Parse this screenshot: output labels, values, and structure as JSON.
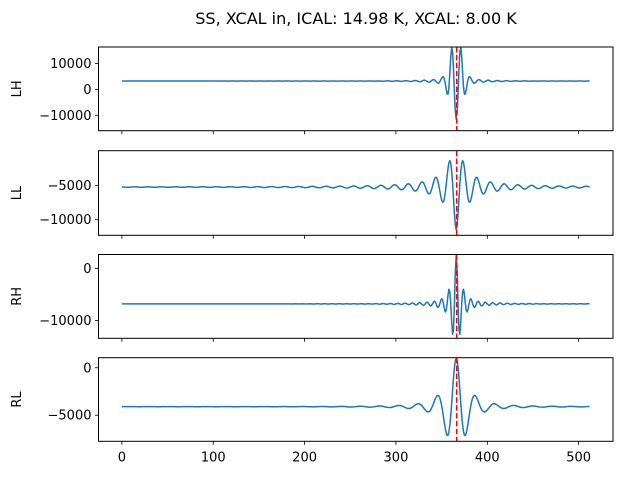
{
  "figure": {
    "title": "SS, XCAL in, ICAL: 14.98 K, XCAL: 8.00 K",
    "background": "#ffffff",
    "spine_color": "#000000",
    "tick_color": "#000000",
    "signal_color": "#1f77b4",
    "marker_color": "#ff0000"
  },
  "chart_data": [
    {
      "type": "line",
      "ylabel": "LH",
      "xlim": [
        -25.6,
        537.6
      ],
      "ylim": [
        -15950,
        16340
      ],
      "xticks": [
        0,
        100,
        200,
        300,
        400,
        500
      ],
      "yticks": [
        10000,
        0,
        -10000
      ],
      "show_xticklabels": false,
      "x_range": [
        0,
        512
      ],
      "baseline": 3200,
      "peak_value": 15000,
      "trough_value": -11000,
      "vline_x": 366.5,
      "burst": {
        "center": 366,
        "amplitude": 14200,
        "half_width": 8.2,
        "falloff": 4,
        "side_amplitude": 500,
        "side_half_width": 40,
        "side_falloff": 3,
        "period": 10,
        "phase_deg": 180
      }
    },
    {
      "type": "line",
      "ylabel": "LL",
      "xlim": [
        -25.6,
        537.6
      ],
      "ylim": [
        -12300,
        150
      ],
      "xticks": [
        0,
        100,
        200,
        300,
        400,
        500
      ],
      "yticks": [
        -5000,
        -10000
      ],
      "show_xticklabels": false,
      "x_range": [
        0,
        512
      ],
      "baseline": -5200,
      "peak_value": -1000,
      "trough_value": -11500,
      "vline_x": 366.5,
      "burst": {
        "center": 366,
        "amplitude": 6300,
        "half_width": 10,
        "falloff": 1.5,
        "side_amplitude": 0,
        "side_half_width": 40,
        "side_falloff": 3,
        "period": 15,
        "phase_deg": 180
      }
    },
    {
      "type": "line",
      "ylabel": "RH",
      "xlim": [
        -25.6,
        537.6
      ],
      "ylim": [
        -13430,
        2710
      ],
      "xticks": [
        0,
        100,
        200,
        300,
        400,
        500
      ],
      "yticks": [
        0,
        -10000
      ],
      "show_xticklabels": false,
      "x_range": [
        0,
        512
      ],
      "baseline": -6800,
      "peak_value": 2400,
      "trough_value": -12500,
      "vline_x": 366.5,
      "burst": {
        "center": 366,
        "amplitude": 9200,
        "half_width": 5.1,
        "falloff": 2,
        "side_amplitude": 150,
        "side_half_width": 45,
        "side_falloff": 2.5,
        "period": 8,
        "phase_deg": 0
      }
    },
    {
      "type": "line",
      "ylabel": "RL",
      "xlim": [
        -25.6,
        537.6
      ],
      "ylim": [
        -7750,
        1060
      ],
      "xticks": [
        0,
        100,
        200,
        300,
        400,
        500
      ],
      "yticks": [
        0,
        -5000
      ],
      "show_xticklabels": true,
      "x_range": [
        0,
        512
      ],
      "baseline": -4100,
      "peak_value": 1000,
      "trough_value": -7160,
      "vline_x": 366.5,
      "burst": {
        "center": 366,
        "amplitude": 5100,
        "half_width": 12,
        "falloff": 2.2,
        "side_amplitude": 0,
        "side_half_width": 45,
        "side_falloff": 3,
        "period": 21,
        "phase_deg": 0
      }
    }
  ]
}
